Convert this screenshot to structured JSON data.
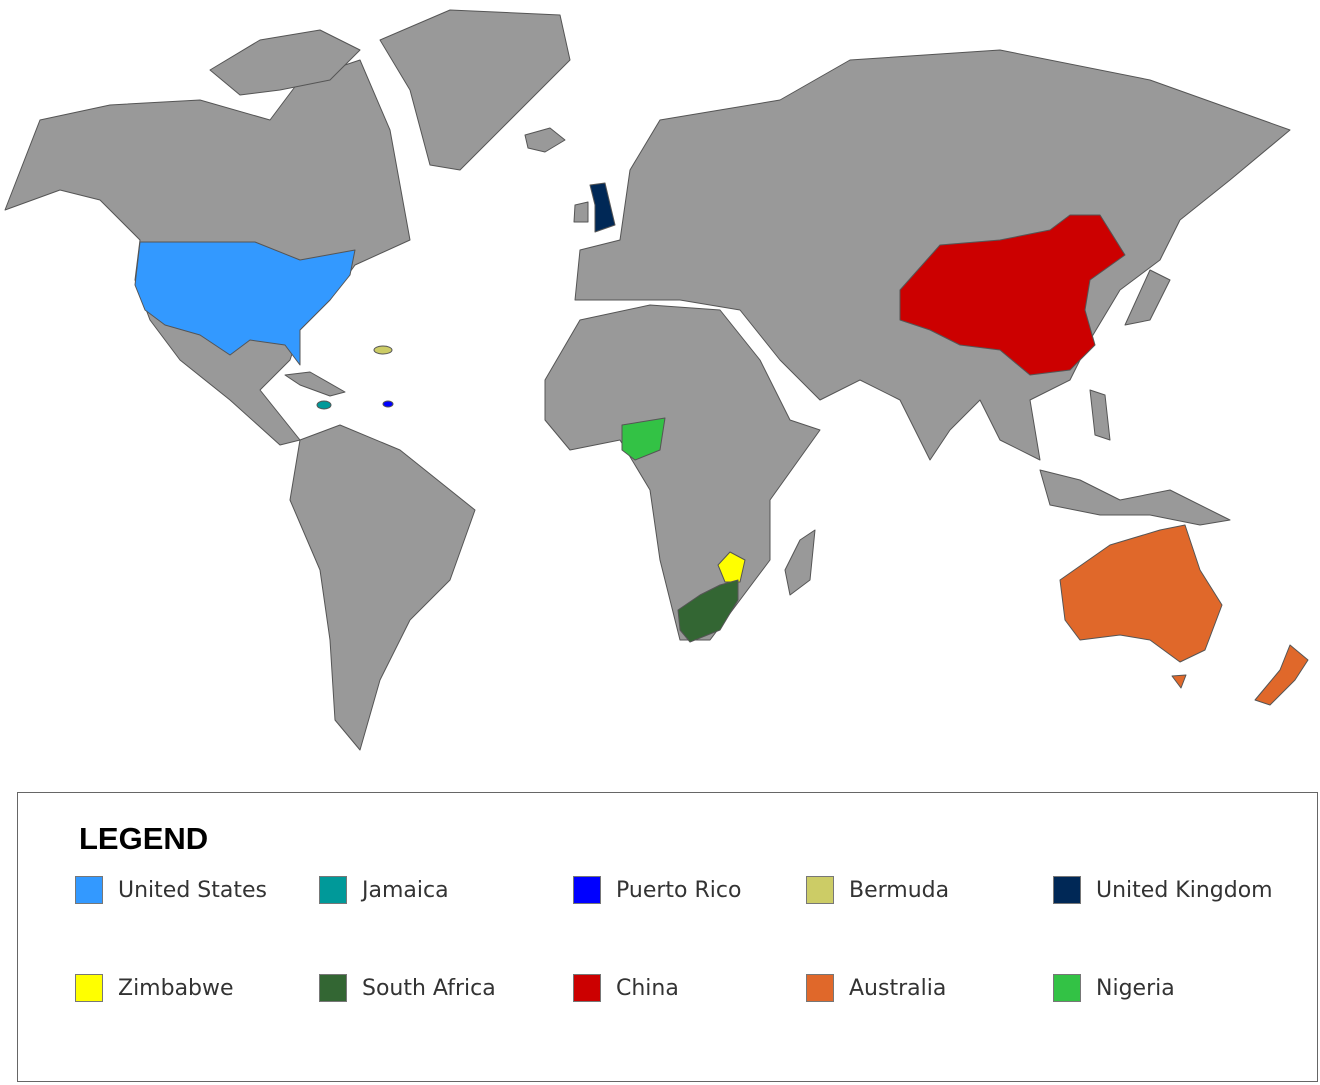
{
  "legend": {
    "title": "LEGEND",
    "items": [
      {
        "label": "United States",
        "color": "#3399ff"
      },
      {
        "label": "Jamaica",
        "color": "#009999"
      },
      {
        "label": "Puerto Rico",
        "color": "#0000ff"
      },
      {
        "label": "Bermuda",
        "color": "#cccc66"
      },
      {
        "label": "United Kingdom",
        "color": "#002856"
      },
      {
        "label": "Zimbabwe",
        "color": "#ffff00"
      },
      {
        "label": "South Africa",
        "color": "#336633"
      },
      {
        "label": "China",
        "color": "#cc0000"
      },
      {
        "label": "Australia",
        "color": "#e0682a"
      },
      {
        "label": "Nigeria",
        "color": "#33c245"
      }
    ]
  },
  "map": {
    "base_color": "#999999"
  }
}
